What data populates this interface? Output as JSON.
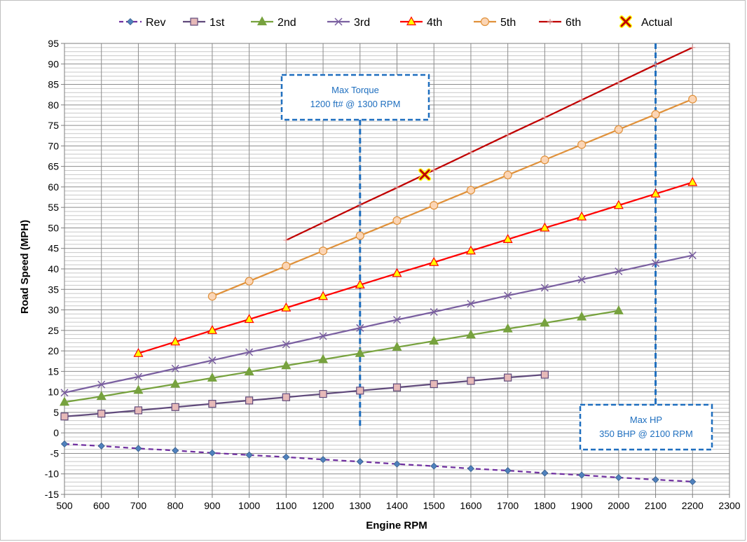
{
  "chart_data": {
    "type": "line",
    "xlabel": "Engine RPM",
    "ylabel": "Road Speed (MPH)",
    "xlim": [
      500,
      2300
    ],
    "ylim": [
      -15,
      95
    ],
    "x_ticks": [
      500,
      600,
      700,
      800,
      900,
      1000,
      1100,
      1200,
      1300,
      1400,
      1500,
      1600,
      1700,
      1800,
      1900,
      2000,
      2100,
      2200,
      2300
    ],
    "y_ticks": [
      -15,
      -10,
      -5,
      0,
      5,
      10,
      15,
      20,
      25,
      30,
      35,
      40,
      45,
      50,
      55,
      60,
      65,
      70,
      75,
      80,
      85,
      90,
      95
    ],
    "grid": true,
    "legend_position": "top",
    "series": [
      {
        "name": "Rev",
        "color": "#7030a0",
        "dash": true,
        "marker": "diamond",
        "marker_color": "#4f81bd",
        "x": [
          500,
          600,
          700,
          800,
          900,
          1000,
          1100,
          1200,
          1300,
          1400,
          1500,
          1600,
          1700,
          1800,
          1900,
          2000,
          2100,
          2200
        ],
        "y": [
          -2.7,
          -3.2,
          -3.8,
          -4.3,
          -4.9,
          -5.4,
          -5.9,
          -6.5,
          -7.0,
          -7.6,
          -8.1,
          -8.7,
          -9.2,
          -9.8,
          -10.3,
          -10.9,
          -11.4,
          -11.9
        ]
      },
      {
        "name": "1st",
        "color": "#604a7b",
        "dash": false,
        "marker": "square",
        "marker_color": "#e6b9b8",
        "x": [
          500,
          600,
          700,
          800,
          900,
          1000,
          1100,
          1200,
          1300,
          1400,
          1500,
          1600,
          1700,
          1800
        ],
        "y": [
          4.0,
          4.7,
          5.5,
          6.3,
          7.1,
          7.9,
          8.7,
          9.5,
          10.3,
          11.1,
          11.9,
          12.7,
          13.5,
          14.2
        ]
      },
      {
        "name": "2nd",
        "color": "#77a23e",
        "dash": false,
        "marker": "triangle",
        "marker_color": "#77a23e",
        "x": [
          500,
          600,
          700,
          800,
          900,
          1000,
          1100,
          1200,
          1300,
          1400,
          1500,
          1600,
          1700,
          1800,
          1900,
          2000
        ],
        "y": [
          7.5,
          8.9,
          10.4,
          11.9,
          13.4,
          14.9,
          16.4,
          17.9,
          19.4,
          20.9,
          22.4,
          23.9,
          25.4,
          26.8,
          28.3,
          29.8
        ]
      },
      {
        "name": "3rd",
        "color": "#7a5fa0",
        "dash": false,
        "marker": "x",
        "marker_color": "#7a5fa0",
        "x": [
          500,
          600,
          700,
          800,
          900,
          1000,
          1100,
          1200,
          1300,
          1400,
          1500,
          1600,
          1700,
          1800,
          1900,
          2000,
          2100,
          2200
        ],
        "y": [
          9.8,
          11.8,
          13.7,
          15.7,
          17.7,
          19.7,
          21.6,
          23.6,
          25.6,
          27.6,
          29.5,
          31.5,
          33.5,
          35.4,
          37.4,
          39.4,
          41.4,
          43.3
        ]
      },
      {
        "name": "4th",
        "color": "#ff0000",
        "dash": false,
        "marker": "triangle",
        "marker_color": "#ffff00",
        "x": [
          700,
          800,
          900,
          1000,
          1100,
          1200,
          1300,
          1400,
          1500,
          1600,
          1700,
          1800,
          1900,
          2000,
          2100,
          2200
        ],
        "y": [
          19.4,
          22.2,
          25.0,
          27.7,
          30.5,
          33.3,
          36.1,
          38.9,
          41.6,
          44.4,
          47.2,
          50.0,
          52.7,
          55.5,
          58.3,
          61.1
        ]
      },
      {
        "name": "5th",
        "color": "#e0913a",
        "dash": false,
        "marker": "circle",
        "marker_color": "#fbd5b5",
        "x": [
          900,
          1000,
          1100,
          1200,
          1300,
          1400,
          1500,
          1600,
          1700,
          1800,
          1900,
          2000,
          2100,
          2200
        ],
        "y": [
          33.3,
          37.0,
          40.7,
          44.4,
          48.1,
          51.8,
          55.5,
          59.2,
          62.9,
          66.6,
          70.3,
          74.0,
          77.7,
          81.4
        ]
      },
      {
        "name": "6th",
        "color": "#c00000",
        "dash": false,
        "marker": "plus",
        "marker_color": "#c00000",
        "x": [
          1100,
          1200,
          1300,
          1400,
          1500,
          1600,
          1700,
          1800,
          1900,
          2000,
          2100,
          2200
        ],
        "y": [
          47.0,
          51.3,
          55.6,
          59.8,
          64.1,
          68.4,
          72.7,
          76.9,
          81.2,
          85.5,
          89.8,
          94.0
        ]
      },
      {
        "name": "Actual",
        "color": "#c00000",
        "dash": false,
        "marker": "bigx",
        "marker_color": "#ffff00",
        "x": [
          1475
        ],
        "y": [
          63
        ]
      }
    ],
    "annotations": [
      {
        "lines": [
          "Max Torque",
          "1200 ft# @ 1300 RPM"
        ],
        "vline_x": 1300,
        "color": "#1f6fbf"
      },
      {
        "lines": [
          "Max HP",
          "350 BHP @ 2100 RPM"
        ],
        "vline_x": 2100,
        "color": "#1f6fbf"
      }
    ]
  }
}
